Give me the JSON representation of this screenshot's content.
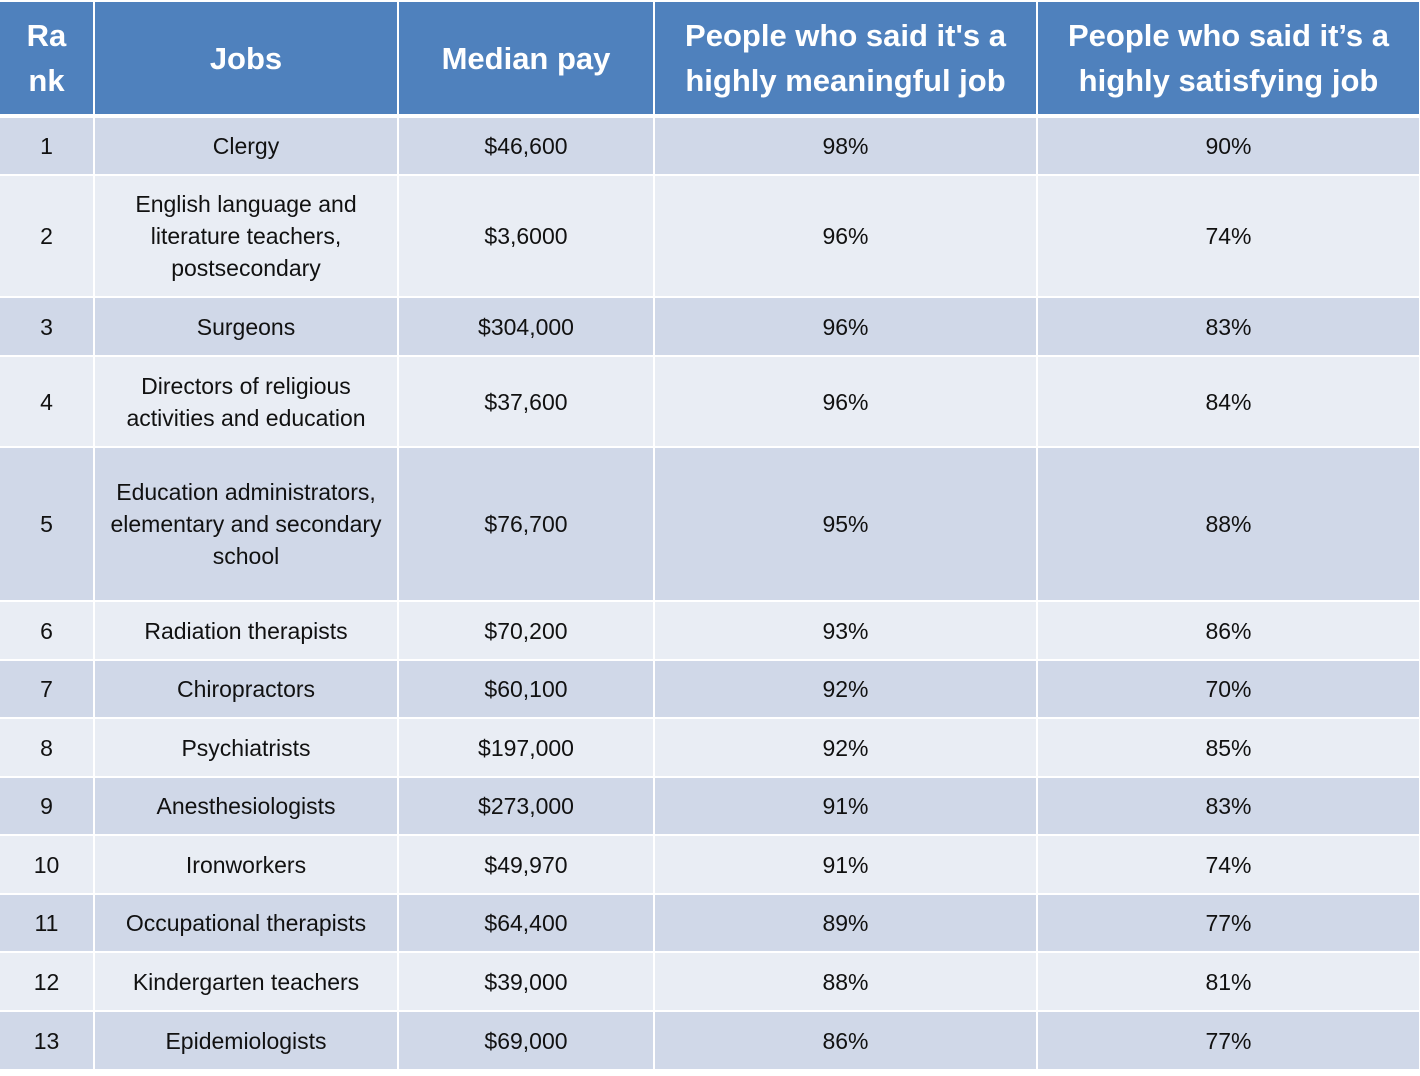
{
  "table": {
    "header": [
      "Rank",
      "Jobs",
      "Median pay",
      "People who said it's a highly meaningful job",
      "People who said it’s a highly satisfying job"
    ],
    "rows": [
      [
        "1",
        "Clergy",
        "$46,600",
        "98%",
        "90%"
      ],
      [
        "2",
        "English language and literature teachers, postsecondary",
        "$3,6000",
        "96%",
        "74%"
      ],
      [
        "3",
        "Surgeons",
        "$304,000",
        "96%",
        "83%"
      ],
      [
        "4",
        "Directors of religious activities and education",
        "$37,600",
        "96%",
        "84%"
      ],
      [
        "5",
        "Education administrators, elementary and secondary school",
        "$76,700",
        "95%",
        "88%"
      ],
      [
        "6",
        "Radiation therapists",
        "$70,200",
        "93%",
        "86%"
      ],
      [
        "7",
        "Chiropractors",
        "$60,100",
        "92%",
        "70%"
      ],
      [
        "8",
        "Psychiatrists",
        "$197,000",
        "92%",
        "85%"
      ],
      [
        "9",
        "Anesthesiologists",
        "$273,000",
        "91%",
        "83%"
      ],
      [
        "10",
        "Ironworkers",
        "$49,970",
        "91%",
        "74%"
      ],
      [
        "11",
        "Occupational therapists",
        "$64,400",
        "89%",
        "77%"
      ],
      [
        "12",
        "Kindergarten teachers",
        "$39,000",
        "88%",
        "81%"
      ],
      [
        "13",
        "Epidemiologists",
        "$69,000",
        "86%",
        "77%"
      ]
    ]
  }
}
